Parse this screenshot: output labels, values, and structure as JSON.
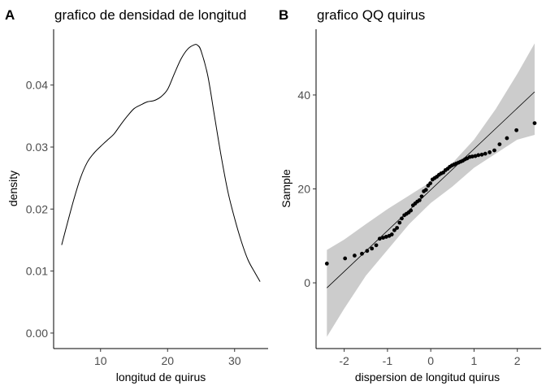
{
  "chart_data": [
    {
      "panel": "A",
      "type": "line",
      "title": "grafico de densidad de longitud",
      "xlabel": "longitud de quirus",
      "ylabel": "density",
      "xlim": [
        3,
        35
      ],
      "ylim": [
        -0.0025,
        0.049
      ],
      "xticks": [
        10,
        20,
        30
      ],
      "yticks": [
        0.0,
        0.01,
        0.02,
        0.03,
        0.04
      ],
      "ytick_labels": [
        "0.00",
        "0.01",
        "0.02",
        "0.03",
        "0.04"
      ],
      "grid": false,
      "series": [
        {
          "x": [
            4.2,
            5,
            6,
            7,
            8,
            9,
            10,
            11,
            12,
            13,
            14,
            15,
            16,
            17,
            18,
            19,
            20,
            21,
            22,
            23,
            24,
            24.5,
            25,
            26,
            27,
            28,
            29,
            30,
            31,
            32,
            33,
            33.8
          ],
          "y": [
            0.0142,
            0.0175,
            0.0215,
            0.025,
            0.0275,
            0.029,
            0.0301,
            0.0311,
            0.0321,
            0.0336,
            0.035,
            0.0362,
            0.0368,
            0.0373,
            0.0375,
            0.0381,
            0.0393,
            0.0418,
            0.0442,
            0.0458,
            0.0465,
            0.0464,
            0.0455,
            0.0415,
            0.035,
            0.0285,
            0.0228,
            0.0185,
            0.0148,
            0.0118,
            0.0098,
            0.0083
          ]
        }
      ]
    },
    {
      "panel": "B",
      "type": "scatter",
      "title": "grafico QQ quirus",
      "xlabel": "dispersion de longitud quirus",
      "ylabel": "Sample",
      "xlim": [
        -2.65,
        2.55
      ],
      "ylim": [
        -14,
        54
      ],
      "xticks": [
        -2,
        -1,
        0,
        1,
        2
      ],
      "xtick_labels": [
        "-2",
        "-1",
        "0",
        "1",
        "2"
      ],
      "yticks": [
        0,
        20,
        40
      ],
      "grid": false,
      "reference_line": {
        "slope": 8.7,
        "intercept": 19.8,
        "x_range": [
          -2.4,
          2.4
        ]
      },
      "confidence_band": {
        "x": [
          -2.4,
          -2.0,
          -1.5,
          -1.0,
          -0.5,
          0.0,
          0.5,
          1.0,
          1.5,
          2.0,
          2.4
        ],
        "upper": [
          7.0,
          9.2,
          12.5,
          15.7,
          18.6,
          21.5,
          25.5,
          30.5,
          37.0,
          44.5,
          51.0
        ],
        "lower": [
          -11.5,
          -5.5,
          1.5,
          7.0,
          12.5,
          17.0,
          20.5,
          24.5,
          27.5,
          30.5,
          31.5
        ]
      },
      "points": {
        "x": [
          -2.4,
          -1.98,
          -1.76,
          -1.59,
          -1.47,
          -1.36,
          -1.26,
          -1.18,
          -1.1,
          -1.03,
          -0.96,
          -0.9,
          -0.84,
          -0.78,
          -0.72,
          -0.67,
          -0.61,
          -0.56,
          -0.51,
          -0.46,
          -0.41,
          -0.36,
          -0.31,
          -0.26,
          -0.21,
          -0.16,
          -0.11,
          -0.06,
          -0.01,
          0.04,
          0.09,
          0.14,
          0.19,
          0.24,
          0.29,
          0.34,
          0.39,
          0.44,
          0.49,
          0.54,
          0.59,
          0.64,
          0.69,
          0.74,
          0.79,
          0.84,
          0.9,
          0.96,
          1.03,
          1.1,
          1.18,
          1.26,
          1.36,
          1.47,
          1.59,
          1.76,
          1.98,
          2.4
        ],
        "y": [
          4.1,
          5.2,
          5.8,
          6.2,
          6.8,
          7.3,
          8.0,
          9.4,
          9.6,
          9.8,
          10.0,
          10.3,
          11.2,
          11.7,
          12.8,
          13.7,
          14.4,
          14.7,
          15.0,
          15.4,
          16.5,
          16.9,
          17.3,
          17.6,
          18.4,
          19.5,
          19.8,
          20.7,
          21.2,
          22.0,
          22.3,
          22.6,
          23.0,
          23.3,
          23.5,
          24.0,
          24.3,
          24.7,
          25.0,
          25.2,
          25.4,
          25.6,
          25.8,
          26.0,
          26.3,
          26.5,
          26.8,
          26.9,
          27.0,
          27.2,
          27.3,
          27.5,
          27.8,
          28.2,
          29.5,
          30.8,
          32.5,
          34.0
        ]
      }
    }
  ]
}
